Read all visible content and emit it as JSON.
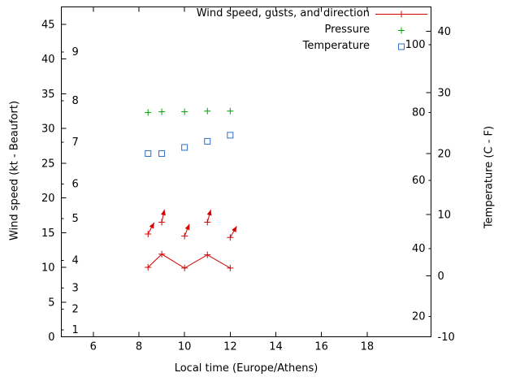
{
  "chart_data": {
    "type": "scatter",
    "xlabel": "Local time (Europe/Athens)",
    "ylabel_left": "Wind speed (kt - Beaufort)",
    "ylabel_right": "Temperature (C - F)",
    "xlim": [
      4.6,
      20.8
    ],
    "ylim_left_kt": [
      0,
      47.5
    ],
    "ylim_right_c": [
      -10,
      44
    ],
    "x_ticks": [
      6,
      8,
      10,
      12,
      14,
      16,
      18
    ],
    "y_ticks_left_kt": [
      0,
      5,
      10,
      15,
      20,
      25,
      30,
      35,
      40,
      45
    ],
    "beaufort_scale_labels": [
      {
        "label": "1",
        "kt": 1
      },
      {
        "label": "2",
        "kt": 4
      },
      {
        "label": "3",
        "kt": 7
      },
      {
        "label": "4",
        "kt": 11
      },
      {
        "label": "5",
        "kt": 17
      },
      {
        "label": "6",
        "kt": 22
      },
      {
        "label": "7",
        "kt": 28
      },
      {
        "label": "8",
        "kt": 34
      },
      {
        "label": "9",
        "kt": 41
      }
    ],
    "y_ticks_right_c": [
      -10,
      0,
      10,
      20,
      30,
      40
    ],
    "fahrenheit_scale_labels": [
      {
        "label": "20",
        "c": -6.7
      },
      {
        "label": "40",
        "c": 4.4
      },
      {
        "label": "60",
        "c": 15.6
      },
      {
        "label": "80",
        "c": 26.7
      },
      {
        "label": "100",
        "c": 37.8
      }
    ],
    "x": [
      8.4,
      9.0,
      10.0,
      11.0,
      12.0
    ],
    "series": [
      {
        "name": "Wind speed, gusts, and direction",
        "color": "#d40000",
        "marker": "plus-with-direction-arrow",
        "wind_speed_kt": [
          10.0,
          11.9,
          9.9,
          11.8,
          9.9
        ],
        "gust_kt": [
          14.8,
          16.5,
          14.5,
          16.5,
          14.3
        ],
        "direction_deg": [
          28,
          12,
          22,
          15,
          30
        ]
      },
      {
        "name": "Pressure",
        "color": "#00a400",
        "marker": "plus",
        "y_left_scale": [
          32.3,
          32.4,
          32.4,
          32.5,
          32.5
        ]
      },
      {
        "name": "Temperature",
        "color": "#2a6fc9",
        "marker": "open-square",
        "temperature_c": [
          20,
          20,
          21,
          22,
          23
        ]
      }
    ],
    "legend_position": "top-right-inside",
    "grid": false
  }
}
